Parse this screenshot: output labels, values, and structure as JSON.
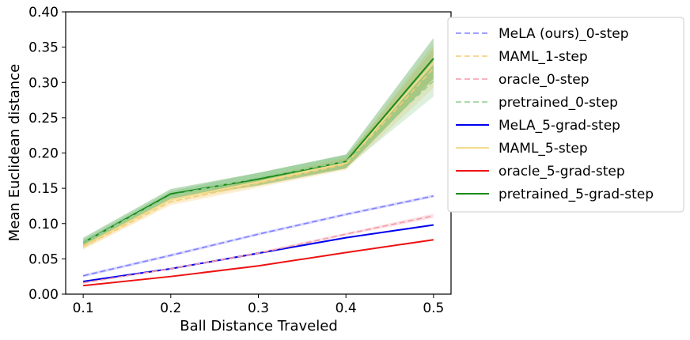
{
  "chart_data": {
    "type": "line",
    "title": "",
    "xlabel": "Ball Distance Traveled",
    "ylabel": "Mean Euclidean distance",
    "x": [
      0.1,
      0.2,
      0.3,
      0.4,
      0.5
    ],
    "xlim": [
      0.08,
      0.52
    ],
    "ylim": [
      0.0,
      0.4
    ],
    "xticks": [
      0.1,
      0.2,
      0.3,
      0.4,
      0.5
    ],
    "xtick_labels": [
      "0.1",
      "0.2",
      "0.3",
      "0.4",
      "0.5"
    ],
    "yticks": [
      0.0,
      0.05,
      0.1,
      0.15,
      0.2,
      0.25,
      0.3,
      0.35,
      0.4
    ],
    "ytick_labels": [
      "0.00",
      "0.05",
      "0.10",
      "0.15",
      "0.20",
      "0.25",
      "0.30",
      "0.35",
      "0.40"
    ],
    "grid": false,
    "legend_position": "right, outside plot",
    "series": [
      {
        "name": "MeLA (ours)_0-step",
        "color": "#8080ff",
        "dash": true,
        "values": [
          0.026,
          0.055,
          0.085,
          0.113,
          0.139
        ],
        "band": [
          0.002,
          0.002,
          0.002,
          0.002,
          0.002
        ]
      },
      {
        "name": "MAML_1-step",
        "color": "#f5cc73",
        "dash": true,
        "values": [
          0.067,
          0.131,
          0.157,
          0.184,
          0.32
        ],
        "band": [
          0.004,
          0.005,
          0.006,
          0.008,
          0.028
        ]
      },
      {
        "name": "oracle_0-step",
        "color": "#f49aa8",
        "dash": true,
        "values": [
          0.016,
          0.036,
          0.058,
          0.085,
          0.111
        ],
        "band": [
          0.001,
          0.001,
          0.002,
          0.002,
          0.003
        ]
      },
      {
        "name": "pretrained_0-step",
        "color": "#8fce8f",
        "dash": true,
        "values": [
          0.073,
          0.14,
          0.165,
          0.188,
          0.302
        ],
        "band": [
          0.004,
          0.006,
          0.007,
          0.009,
          0.022
        ]
      },
      {
        "name": "MeLA_5-grad-step",
        "color": "#0000ee",
        "dash": false,
        "values": [
          0.018,
          0.036,
          0.058,
          0.08,
          0.098
        ],
        "band": [
          0.001,
          0.001,
          0.001,
          0.001,
          0.001
        ]
      },
      {
        "name": "MAML_5-step",
        "color": "#f3dc8e",
        "dash": false,
        "values": [
          0.068,
          0.134,
          0.159,
          0.186,
          0.328
        ],
        "band": [
          0.004,
          0.005,
          0.006,
          0.008,
          0.026
        ]
      },
      {
        "name": "oracle_5-grad-step",
        "color": "#ee1111",
        "dash": false,
        "values": [
          0.012,
          0.025,
          0.04,
          0.059,
          0.077
        ],
        "band": [
          0.0005,
          0.0005,
          0.0005,
          0.0005,
          0.0005
        ]
      },
      {
        "name": "pretrained_5-grad-step",
        "color": "#1a8a1a",
        "dash": false,
        "values": [
          0.073,
          0.142,
          0.163,
          0.188,
          0.334
        ],
        "band": [
          0.007,
          0.007,
          0.009,
          0.01,
          0.029
        ]
      }
    ]
  }
}
